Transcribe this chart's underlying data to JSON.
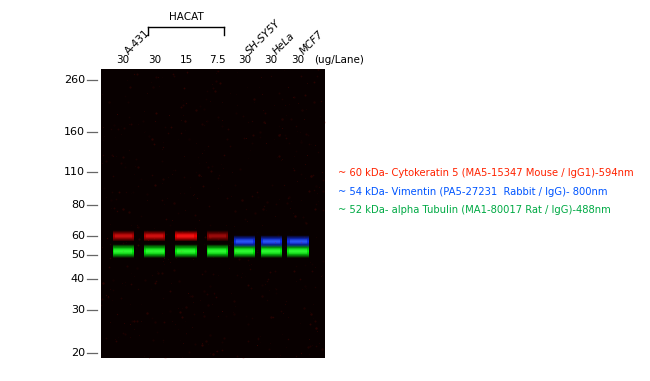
{
  "bg_color": "#0a0000",
  "fig_bg_color": "#ffffff",
  "mw_markers": [
    260,
    160,
    110,
    80,
    60,
    50,
    40,
    30,
    20
  ],
  "legend_lines": [
    {
      "text": "~ 60 kDa- Cytokeratin 5 (MA5-15347 Mouse / IgG1)-594nm",
      "color": "#ff2200"
    },
    {
      "text": "~ 54 kDa- Vimentin (PA5-27231  Rabbit / IgG)- 800nm",
      "color": "#0055ff"
    },
    {
      "text": "~ 52 kDa- alpha Tubulin (MA1-80017 Rat / IgG)-488nm",
      "color": "#00aa44"
    }
  ],
  "green_lanes": [
    0,
    1,
    2,
    3,
    4,
    5,
    6
  ],
  "red_lanes": [
    0,
    1,
    2,
    3
  ],
  "blue_lanes": [
    4,
    5,
    6
  ],
  "concs": [
    "30",
    "30",
    "15",
    "7.5",
    "30",
    "30",
    "30"
  ]
}
